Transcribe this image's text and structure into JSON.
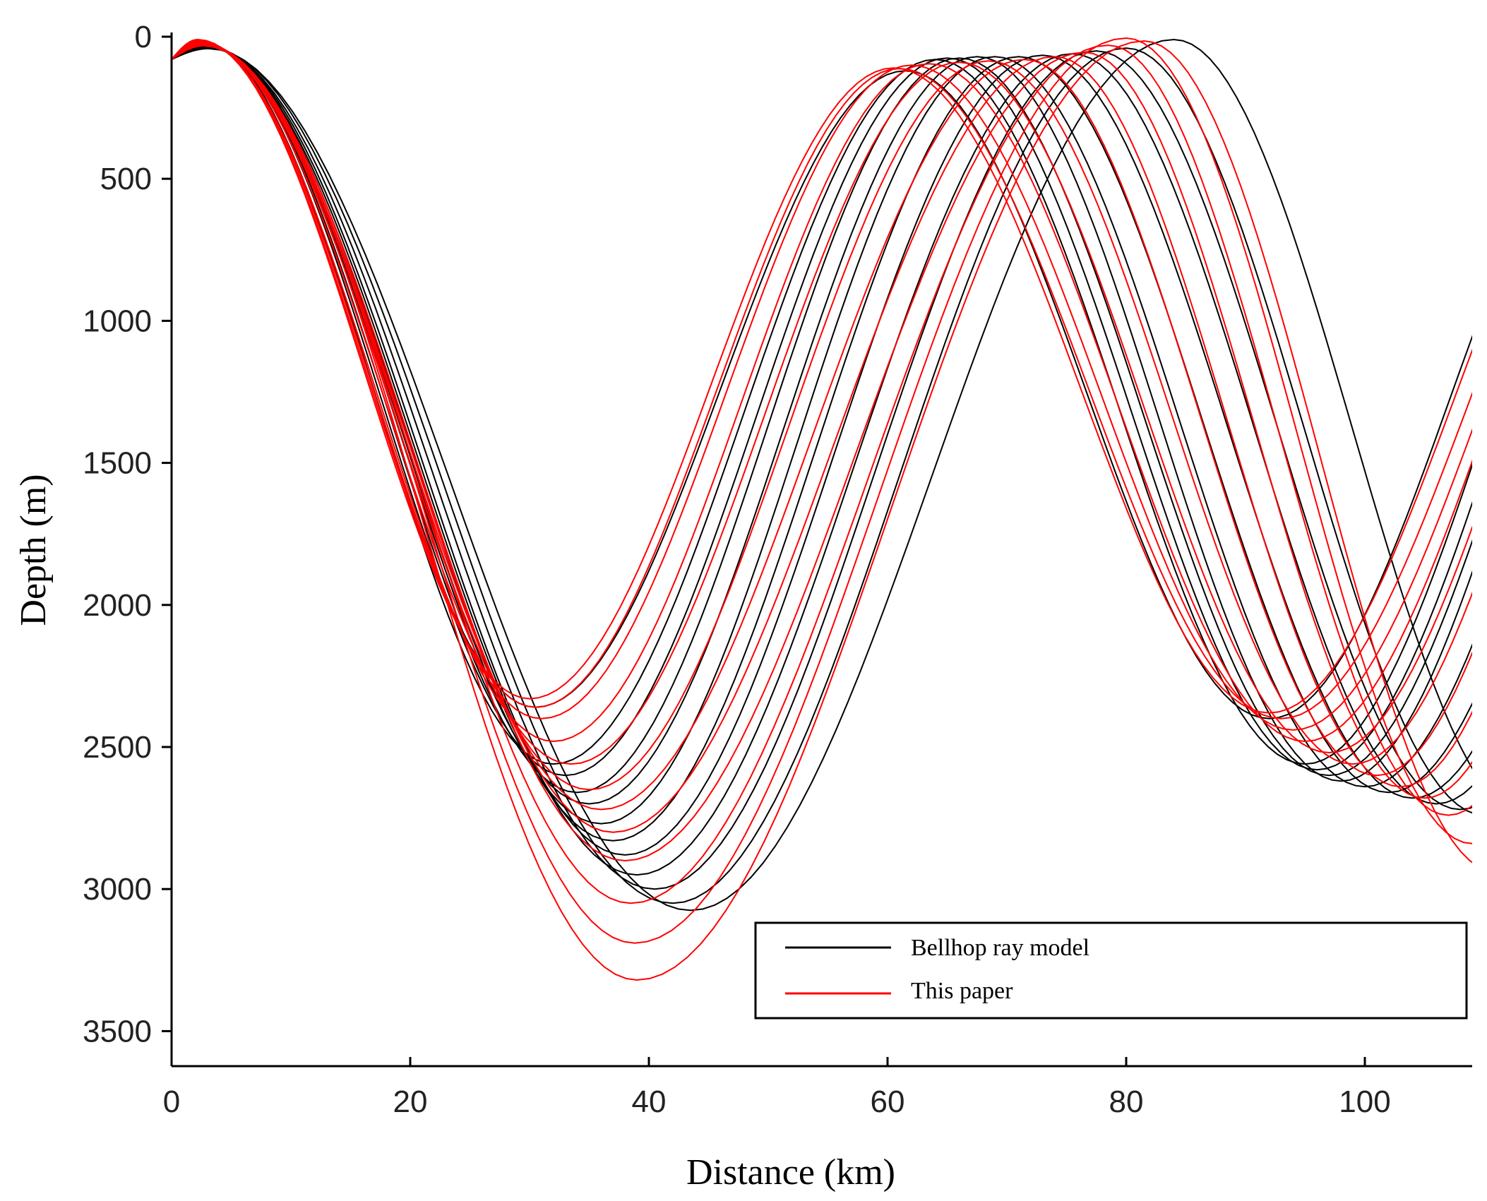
{
  "chart_data": {
    "type": "line",
    "title": "",
    "xlabel": "Distance (km)",
    "ylabel": "Depth (m)",
    "xlim": [
      0,
      109
    ],
    "ylim": [
      0,
      3600
    ],
    "y_inverted": true,
    "x_ticks": [
      0,
      20,
      40,
      60,
      80,
      100
    ],
    "y_ticks": [
      0,
      500,
      1000,
      1500,
      2000,
      2500,
      3000,
      3500
    ],
    "grid": false,
    "legend": {
      "position": "bottom-right"
    },
    "source_depth_m": 80,
    "series": [
      {
        "name": "Bellhop ray model",
        "color": "#000000",
        "rays": [
          {
            "surf1_x": 2.6,
            "surf1_y": 20,
            "bot1_x": 30.5,
            "bot1_y": 2360,
            "surf2_x": 61.5,
            "surf2_y": 120,
            "bot2_x": 92,
            "bot2_y": 2400
          },
          {
            "surf1_x": 2.6,
            "surf1_y": 22,
            "bot1_x": 32.0,
            "bot1_y": 2560,
            "surf2_x": 64.0,
            "surf2_y": 80,
            "bot2_x": 95,
            "bot2_y": 2560
          },
          {
            "surf1_x": 2.7,
            "surf1_y": 24,
            "bot1_x": 33.0,
            "bot1_y": 2600,
            "surf2_x": 65.0,
            "surf2_y": 75,
            "bot2_x": 96,
            "bot2_y": 2580
          },
          {
            "surf1_x": 2.7,
            "surf1_y": 26,
            "bot1_x": 34.0,
            "bot1_y": 2660,
            "surf2_x": 66.0,
            "surf2_y": 75,
            "bot2_x": 97,
            "bot2_y": 2600
          },
          {
            "surf1_x": 2.8,
            "surf1_y": 28,
            "bot1_x": 35.0,
            "bot1_y": 2700,
            "surf2_x": 67.5,
            "surf2_y": 70,
            "bot2_x": 98,
            "bot2_y": 2620
          },
          {
            "surf1_x": 2.8,
            "surf1_y": 30,
            "bot1_x": 36.0,
            "bot1_y": 2770,
            "surf2_x": 69.0,
            "surf2_y": 70,
            "bot2_x": 100,
            "bot2_y": 2640
          },
          {
            "surf1_x": 2.9,
            "surf1_y": 32,
            "bot1_x": 37.0,
            "bot1_y": 2830,
            "surf2_x": 71.0,
            "surf2_y": 70,
            "bot2_x": 102,
            "bot2_y": 2660
          },
          {
            "surf1_x": 2.9,
            "surf1_y": 34,
            "bot1_x": 38.0,
            "bot1_y": 2880,
            "surf2_x": 73.0,
            "surf2_y": 65,
            "bot2_x": 104,
            "bot2_y": 2680
          },
          {
            "surf1_x": 3.0,
            "surf1_y": 36,
            "bot1_x": 39.0,
            "bot1_y": 2950,
            "surf2_x": 75.5,
            "surf2_y": 60,
            "bot2_x": 106,
            "bot2_y": 2700
          },
          {
            "surf1_x": 3.0,
            "surf1_y": 38,
            "bot1_x": 40.5,
            "bot1_y": 3000,
            "surf2_x": 77.5,
            "surf2_y": 50,
            "bot2_x": 108,
            "bot2_y": 2720
          },
          {
            "surf1_x": 3.1,
            "surf1_y": 40,
            "bot1_x": 42.0,
            "bot1_y": 3050,
            "surf2_x": 80.0,
            "surf2_y": 40,
            "bot2_x": 110,
            "bot2_y": 2740
          },
          {
            "surf1_x": 3.1,
            "surf1_y": 42,
            "bot1_x": 43.5,
            "bot1_y": 3075,
            "surf2_x": 84.0,
            "surf2_y": 10,
            "bot2_x": 114,
            "bot2_y": 2760
          }
        ]
      },
      {
        "name": "This paper",
        "color": "#ff0000",
        "rays": [
          {
            "surf1_x": 2.2,
            "surf1_y": 10,
            "bot1_x": 30.0,
            "bot1_y": 2330,
            "surf2_x": 60.5,
            "surf2_y": 110,
            "bot2_x": 92,
            "bot2_y": 2380
          },
          {
            "surf1_x": 2.2,
            "surf1_y": 12,
            "bot1_x": 30.5,
            "bot1_y": 2360,
            "surf2_x": 61.0,
            "surf2_y": 112,
            "bot2_x": 93,
            "bot2_y": 2400
          },
          {
            "surf1_x": 2.3,
            "surf1_y": 14,
            "bot1_x": 31.0,
            "bot1_y": 2400,
            "surf2_x": 62.0,
            "surf2_y": 100,
            "bot2_x": 94,
            "bot2_y": 2440
          },
          {
            "surf1_x": 2.3,
            "surf1_y": 16,
            "bot1_x": 32.0,
            "bot1_y": 2480,
            "surf2_x": 63.5,
            "surf2_y": 95,
            "bot2_x": 95,
            "bot2_y": 2480
          },
          {
            "surf1_x": 2.4,
            "surf1_y": 18,
            "bot1_x": 33.5,
            "bot1_y": 2560,
            "surf2_x": 66.0,
            "surf2_y": 90,
            "bot2_x": 97,
            "bot2_y": 2520
          },
          {
            "surf1_x": 2.4,
            "surf1_y": 20,
            "bot1_x": 35.0,
            "bot1_y": 2650,
            "surf2_x": 68.5,
            "surf2_y": 85,
            "bot2_x": 99,
            "bot2_y": 2560
          },
          {
            "surf1_x": 2.5,
            "surf1_y": 22,
            "bot1_x": 36.0,
            "bot1_y": 2720,
            "surf2_x": 71.5,
            "surf2_y": 80,
            "bot2_x": 101,
            "bot2_y": 2600
          },
          {
            "surf1_x": 2.5,
            "surf1_y": 24,
            "bot1_x": 37.0,
            "bot1_y": 2800,
            "surf2_x": 74.0,
            "surf2_y": 70,
            "bot2_x": 103,
            "bot2_y": 2640
          },
          {
            "surf1_x": 2.6,
            "surf1_y": 26,
            "bot1_x": 38.0,
            "bot1_y": 2900,
            "surf2_x": 76.5,
            "surf2_y": 55,
            "bot2_x": 105,
            "bot2_y": 2680
          },
          {
            "surf1_x": 2.6,
            "surf1_y": 28,
            "bot1_x": 38.5,
            "bot1_y": 3050,
            "surf2_x": 78.5,
            "surf2_y": 30,
            "bot2_x": 107,
            "bot2_y": 2740
          },
          {
            "surf1_x": 2.7,
            "surf1_y": 30,
            "bot1_x": 38.8,
            "bot1_y": 3190,
            "surf2_x": 80.0,
            "surf2_y": 5,
            "bot2_x": 109,
            "bot2_y": 2840
          },
          {
            "surf1_x": 2.7,
            "surf1_y": 32,
            "bot1_x": 39.0,
            "bot1_y": 3320,
            "surf2_x": 81.5,
            "surf2_y": 15,
            "bot2_x": 111,
            "bot2_y": 2940
          }
        ]
      }
    ]
  }
}
